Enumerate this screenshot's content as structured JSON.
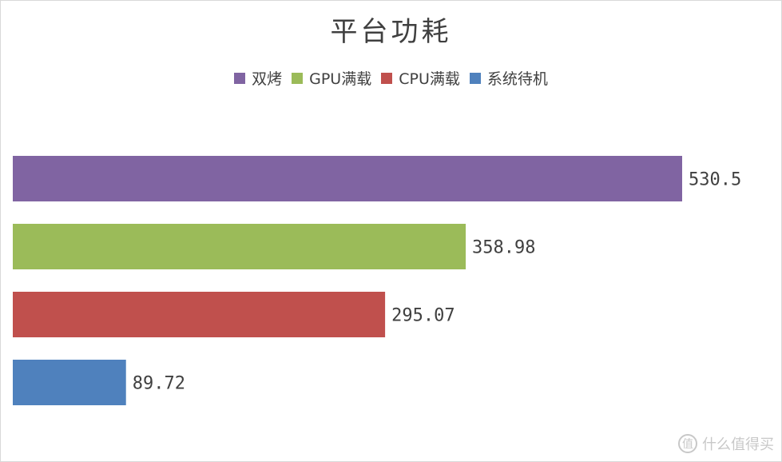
{
  "chart_data": {
    "type": "bar",
    "orientation": "horizontal",
    "title": "平台功耗",
    "categories": [
      "双烤",
      "GPU满载",
      "CPU满载",
      "系统待机"
    ],
    "values": [
      530.5,
      358.98,
      295.07,
      89.72
    ],
    "value_labels": [
      "530.5",
      "358.98",
      "295.07",
      "89.72"
    ],
    "colors": [
      "#8064a2",
      "#9bbb59",
      "#c0504d",
      "#4f81bd"
    ],
    "legend_position": "top",
    "grid": false,
    "xlim": [
      0,
      600
    ]
  },
  "watermark": {
    "glyph": "值",
    "text": "什么值得买"
  }
}
